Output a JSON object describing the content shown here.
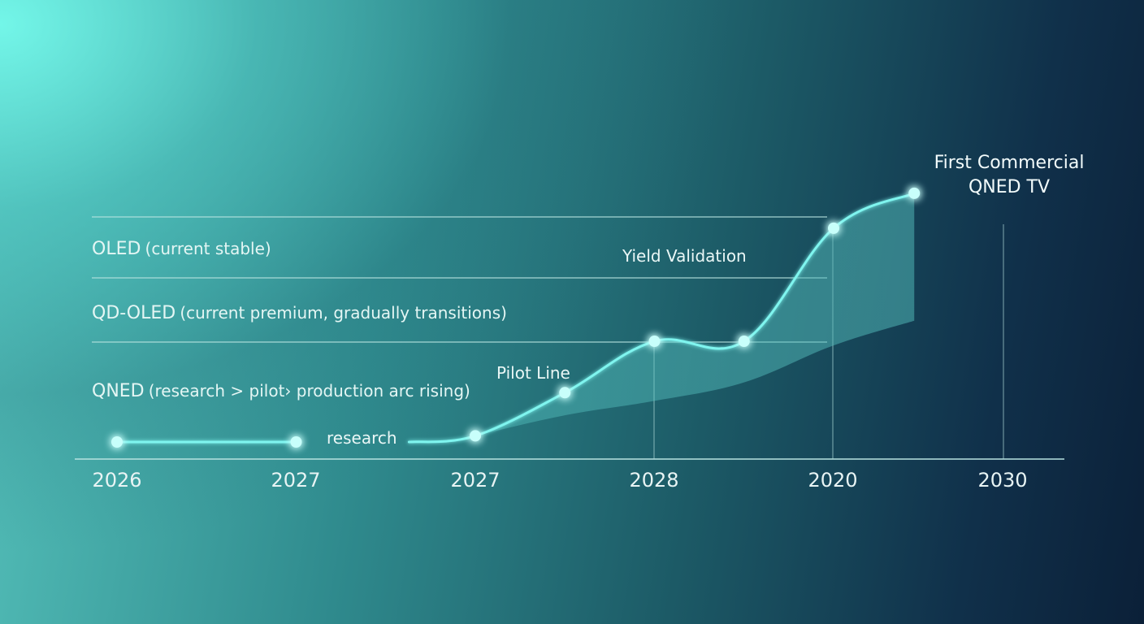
{
  "chart_data": {
    "type": "line",
    "title_lines": [
      "First Commercial",
      "QNED TV"
    ],
    "xticks": [
      "2026",
      "2027",
      "2027",
      "2028",
      "2020",
      "2030"
    ],
    "bands": [
      {
        "name": "OLED",
        "desc": "(current stable)"
      },
      {
        "name": "QD-OLED",
        "desc": "(current premium, gradually transitions)"
      },
      {
        "name": "QNED",
        "desc": "(research > pilot› production arc rising)"
      }
    ],
    "annotations": {
      "research": "research",
      "pilot": "Pilot Line",
      "yield": "Yield Validation"
    },
    "series": [
      {
        "name": "QNED",
        "x": [
          0,
          1,
          2,
          2.5,
          3,
          3.5,
          4,
          4.45
        ],
        "y": [
          0,
          0,
          0.03,
          0.24,
          0.49,
          0.49,
          1.04,
          1.21
        ]
      }
    ],
    "colors": {
      "line": "#7ff5ef",
      "glow": "#c8fffb",
      "grid": "#b8e3e0"
    }
  }
}
